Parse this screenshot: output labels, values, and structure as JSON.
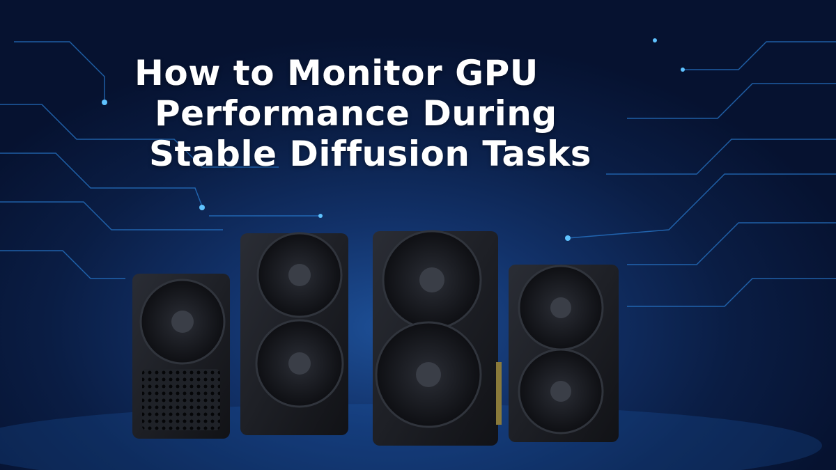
{
  "title": {
    "line1": "How to Monitor GPU",
    "line2": "Performance During",
    "line3": "Stable Diffusion Tasks"
  },
  "colors": {
    "background": "#0a1d44",
    "glow": "#1d4f96",
    "circuit": "#2a7fd6",
    "card": "#1a1c22",
    "title": "#ffffff"
  },
  "graphics": {
    "gpu_cards": [
      "single-fan-card",
      "dual-fan-card",
      "large-dual-fan-card",
      "compact-dual-fan-card"
    ]
  }
}
